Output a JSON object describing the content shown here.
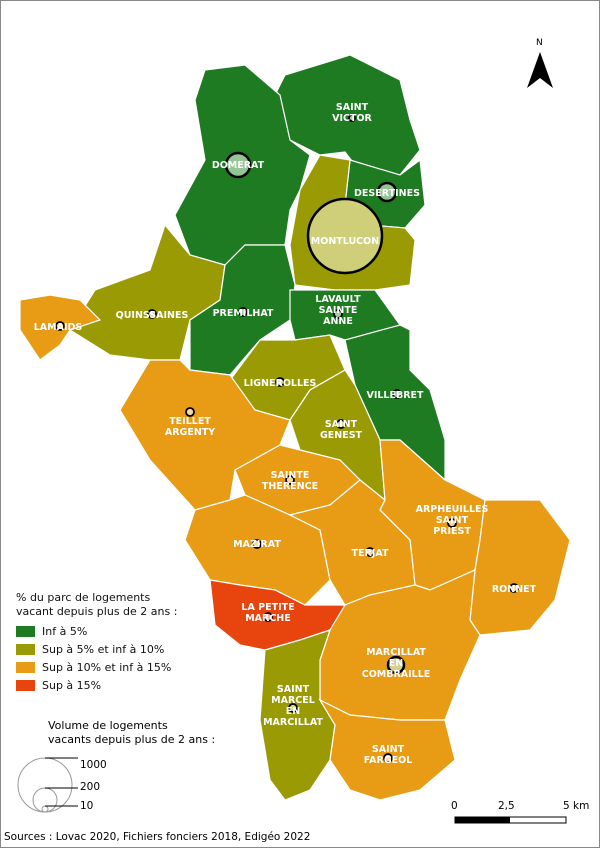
{
  "north_label": "N",
  "legend": {
    "title_line1": "% du parc de logements",
    "title_line2": "vacant depuis plus de 2 ans :",
    "classes": [
      {
        "label": "Inf à 5%",
        "color": "#1e7b22"
      },
      {
        "label": "Sup à 5% et inf à 10%",
        "color": "#9a9a05"
      },
      {
        "label": "Sup à 10% et inf à 15%",
        "color": "#e89c16"
      },
      {
        "label": "Sup à 15%",
        "color": "#e8450e"
      }
    ],
    "volume_title_line1": "Volume de logements",
    "volume_title_line2": "vacants depuis plus de 2 ans :",
    "volume_values": [
      "1000",
      "200",
      "10"
    ]
  },
  "scale": {
    "labels": [
      "0",
      "2,5",
      "5 km"
    ]
  },
  "sources": "Sources : Lovac 2020, Fichiers fonciers 2018, Edigéo 2022",
  "communes": [
    {
      "name": [
        "SAINT",
        "VICTOR"
      ],
      "class": 0
    },
    {
      "name": [
        "DOMERAT"
      ],
      "class": 0
    },
    {
      "name": [
        "DESERTINES"
      ],
      "class": 0
    },
    {
      "name": [
        "MONTLUCON"
      ],
      "class": 1
    },
    {
      "name": [
        "QUINSSAINES"
      ],
      "class": 1
    },
    {
      "name": [
        "LAMAIDS"
      ],
      "class": 2
    },
    {
      "name": [
        "PREMILHAT"
      ],
      "class": 0
    },
    {
      "name": [
        "LAVAULT",
        "SAINTE",
        "ANNE"
      ],
      "class": 0
    },
    {
      "name": [
        "LIGNEROLLES"
      ],
      "class": 1
    },
    {
      "name": [
        "VILLEBRET"
      ],
      "class": 0
    },
    {
      "name": [
        "SAINT",
        "GENEST"
      ],
      "class": 1
    },
    {
      "name": [
        "TEILLET",
        "ARGENTY"
      ],
      "class": 2
    },
    {
      "name": [
        "SAINTE",
        "THERENCE"
      ],
      "class": 2
    },
    {
      "name": [
        "ARPHEUILLES",
        "SAINT",
        "PRIEST"
      ],
      "class": 2
    },
    {
      "name": [
        "MAZIRAT"
      ],
      "class": 2
    },
    {
      "name": [
        "TERJAT"
      ],
      "class": 2
    },
    {
      "name": [
        "RONNET"
      ],
      "class": 2
    },
    {
      "name": [
        "LA PETITE",
        "MARCHE"
      ],
      "class": 3
    },
    {
      "name": [
        "MARCILLAT",
        "EN",
        "COMBRAILLE"
      ],
      "class": 2
    },
    {
      "name": [
        "SAINT",
        "MARCEL",
        "EN",
        "MARCILLAT"
      ],
      "class": 1
    },
    {
      "name": [
        "SAINT",
        "FARGEOL"
      ],
      "class": 2
    }
  ]
}
